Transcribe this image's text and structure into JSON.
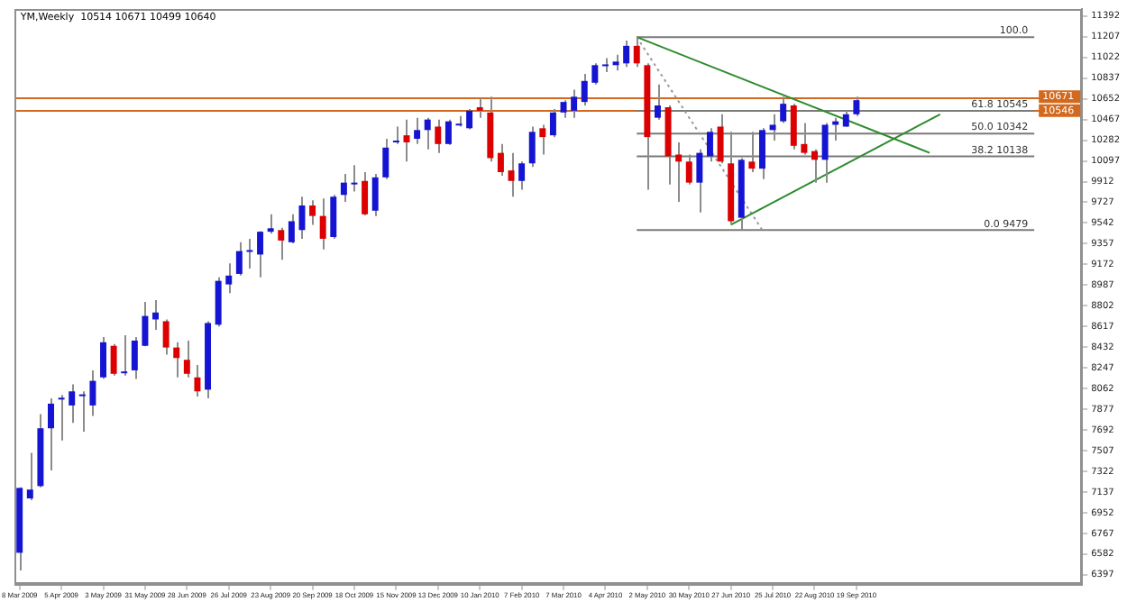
{
  "chart_data": {
    "type": "candlestick",
    "title": "YM,Weekly  10514 10671 10499 10640",
    "x": [
      "2009-03-08",
      "2009-03-15",
      "2009-03-22",
      "2009-03-29",
      "2009-04-05",
      "2009-04-12",
      "2009-04-19",
      "2009-04-26",
      "2009-05-03",
      "2009-05-10",
      "2009-05-17",
      "2009-05-24",
      "2009-05-31",
      "2009-06-07",
      "2009-06-14",
      "2009-06-21",
      "2009-06-28",
      "2009-07-05",
      "2009-07-12",
      "2009-07-19",
      "2009-07-26",
      "2009-08-02",
      "2009-08-09",
      "2009-08-16",
      "2009-08-23",
      "2009-08-30",
      "2009-09-06",
      "2009-09-13",
      "2009-09-20",
      "2009-09-27",
      "2009-10-04",
      "2009-10-11",
      "2009-10-18",
      "2009-10-25",
      "2009-11-01",
      "2009-11-08",
      "2009-11-15",
      "2009-11-22",
      "2009-11-29",
      "2009-12-06",
      "2009-12-13",
      "2009-12-20",
      "2009-12-27",
      "2010-01-03",
      "2010-01-10",
      "2010-01-17",
      "2010-01-24",
      "2010-01-31",
      "2010-02-07",
      "2010-02-14",
      "2010-02-21",
      "2010-02-28",
      "2010-03-07",
      "2010-03-14",
      "2010-03-21",
      "2010-03-28",
      "2010-04-04",
      "2010-04-11",
      "2010-04-18",
      "2010-04-25",
      "2010-05-02",
      "2010-05-09",
      "2010-05-16",
      "2010-05-23",
      "2010-05-30",
      "2010-06-06",
      "2010-06-13",
      "2010-06-20",
      "2010-06-27",
      "2010-07-04",
      "2010-07-11",
      "2010-07-18",
      "2010-07-25",
      "2010-08-01",
      "2010-08-08",
      "2010-08-15",
      "2010-08-22",
      "2010-08-29",
      "2010-09-05",
      "2010-09-12",
      "2010-09-19"
    ],
    "ohlc": [
      [
        6594,
        7180,
        6437,
        7174
      ],
      [
        7080,
        7488,
        7065,
        7159
      ],
      [
        7190,
        7833,
        7180,
        7707
      ],
      [
        7707,
        7974,
        7331,
        7927
      ],
      [
        7974,
        8005,
        7598,
        7980
      ],
      [
        7911,
        8099,
        7755,
        8037
      ],
      [
        8005,
        8037,
        7676,
        8010
      ],
      [
        7911,
        8225,
        7817,
        8131
      ],
      [
        8162,
        8523,
        8150,
        8476
      ],
      [
        8444,
        8460,
        8178,
        8194
      ],
      [
        8200,
        8539,
        8178,
        8215
      ],
      [
        8225,
        8523,
        8147,
        8491
      ],
      [
        8444,
        8836,
        8440,
        8711
      ],
      [
        8680,
        8852,
        8586,
        8742
      ],
      [
        8664,
        8680,
        8366,
        8429
      ],
      [
        8429,
        8476,
        8162,
        8335
      ],
      [
        8319,
        8491,
        8162,
        8194
      ],
      [
        8162,
        8272,
        7990,
        8037
      ],
      [
        8052,
        8664,
        7974,
        8648
      ],
      [
        8633,
        9056,
        8617,
        9025
      ],
      [
        8993,
        9181,
        8915,
        9072
      ],
      [
        9087,
        9370,
        9072,
        9291
      ],
      [
        9291,
        9401,
        9134,
        9300
      ],
      [
        9260,
        9470,
        9056,
        9464
      ],
      [
        9464,
        9620,
        9448,
        9495
      ],
      [
        9479,
        9500,
        9213,
        9385
      ],
      [
        9370,
        9620,
        9360,
        9558
      ],
      [
        9479,
        9777,
        9401,
        9699
      ],
      [
        9699,
        9746,
        9526,
        9605
      ],
      [
        9605,
        9762,
        9307,
        9401
      ],
      [
        9417,
        9793,
        9401,
        9777
      ],
      [
        9793,
        9981,
        9730,
        9903
      ],
      [
        9887,
        10059,
        9824,
        9903
      ],
      [
        9918,
        9997,
        9610,
        9620
      ],
      [
        9652,
        9981,
        9605,
        9950
      ],
      [
        9950,
        10295,
        9934,
        10216
      ],
      [
        10263,
        10404,
        10248,
        10279
      ],
      [
        10326,
        10467,
        10091,
        10263
      ],
      [
        10295,
        10483,
        10248,
        10373
      ],
      [
        10373,
        10483,
        10201,
        10467
      ],
      [
        10404,
        10467,
        10169,
        10248
      ],
      [
        10248,
        10467,
        10240,
        10451
      ],
      [
        10420,
        10499,
        10404,
        10430
      ],
      [
        10389,
        10561,
        10380,
        10546
      ],
      [
        10577,
        10655,
        10483,
        10546
      ],
      [
        10530,
        10671,
        10091,
        10122
      ],
      [
        10169,
        10248,
        9965,
        9997
      ],
      [
        10012,
        10169,
        9777,
        9918
      ],
      [
        9918,
        10091,
        9840,
        10075
      ],
      [
        10075,
        10404,
        10044,
        10357
      ],
      [
        10389,
        10420,
        10154,
        10310
      ],
      [
        10326,
        10561,
        10310,
        10530
      ],
      [
        10530,
        10640,
        10483,
        10624
      ],
      [
        10546,
        10734,
        10483,
        10671
      ],
      [
        10624,
        10875,
        10593,
        10812
      ],
      [
        10796,
        10969,
        10781,
        10953
      ],
      [
        10953,
        11016,
        10891,
        10960
      ],
      [
        10953,
        11047,
        10906,
        10985
      ],
      [
        10969,
        11173,
        10938,
        11126
      ],
      [
        11126,
        11204,
        10938,
        10969
      ],
      [
        10953,
        10969,
        9840,
        10310
      ],
      [
        10483,
        10781,
        10467,
        10593
      ],
      [
        10577,
        10593,
        9887,
        10138
      ],
      [
        10154,
        10263,
        9730,
        10091
      ],
      [
        10091,
        10154,
        9887,
        9903
      ],
      [
        9903,
        10201,
        9636,
        10169
      ],
      [
        10138,
        10389,
        10091,
        10357
      ],
      [
        10404,
        10514,
        10075,
        10091
      ],
      [
        10075,
        10357,
        9526,
        9558
      ],
      [
        9589,
        10122,
        9479,
        10107
      ],
      [
        10091,
        10357,
        9997,
        10028
      ],
      [
        10028,
        10389,
        9934,
        10373
      ],
      [
        10373,
        10514,
        10279,
        10420
      ],
      [
        10451,
        10671,
        10436,
        10608
      ],
      [
        10593,
        10608,
        10201,
        10232
      ],
      [
        10248,
        10436,
        10154,
        10169
      ],
      [
        10185,
        10201,
        9903,
        10107
      ],
      [
        10107,
        10436,
        9903,
        10420
      ],
      [
        10420,
        10483,
        10279,
        10451
      ],
      [
        10404,
        10546,
        10400,
        10514
      ],
      [
        10514,
        10671,
        10499,
        10640
      ]
    ],
    "colors": [
      "#1414d2",
      "#1414d2",
      "#1414d2",
      "#1414d2",
      "#1414d2",
      "#1414d2",
      "#1414d2",
      "#1414d2",
      "#1414d2",
      "#dc0000",
      "#1414d2",
      "#1414d2",
      "#1414d2",
      "#1414d2",
      "#dc0000",
      "#dc0000",
      "#dc0000",
      "#dc0000",
      "#1414d2",
      "#1414d2",
      "#1414d2",
      "#1414d2",
      "#1414d2",
      "#1414d2",
      "#1414d2",
      "#dc0000",
      "#1414d2",
      "#1414d2",
      "#dc0000",
      "#dc0000",
      "#1414d2",
      "#1414d2",
      "#1414d2",
      "#dc0000",
      "#1414d2",
      "#1414d2",
      "#1414d2",
      "#dc0000",
      "#1414d2",
      "#1414d2",
      "#dc0000",
      "#1414d2",
      "#1414d2",
      "#1414d2",
      "#dc0000",
      "#dc0000",
      "#dc0000",
      "#dc0000",
      "#1414d2",
      "#1414d2",
      "#dc0000",
      "#1414d2",
      "#1414d2",
      "#1414d2",
      "#1414d2",
      "#1414d2",
      "#1414d2",
      "#1414d2",
      "#1414d2",
      "#dc0000",
      "#dc0000",
      "#1414d2",
      "#dc0000",
      "#dc0000",
      "#dc0000",
      "#1414d2",
      "#1414d2",
      "#dc0000",
      "#dc0000",
      "#1414d2",
      "#dc0000",
      "#1414d2",
      "#1414d2",
      "#1414d2",
      "#dc0000",
      "#dc0000",
      "#dc0000",
      "#1414d2",
      "#1414d2",
      "#1414d2",
      "#1414d2"
    ],
    "series": [
      {
        "type": "line",
        "color": "#2e8b2e",
        "x": [
          "2010-04-25",
          "2010-11-07"
        ],
        "values": [
          11204,
          10169
        ]
      },
      {
        "type": "line",
        "color": "#2e8b2e",
        "x": [
          "2010-06-27",
          "2010-11-14"
        ],
        "values": [
          9526,
          10514
        ]
      },
      {
        "type": "line",
        "color": "#9a9a9a",
        "line_style": "dotted",
        "x": [
          "2010-04-25",
          "2010-07-18"
        ],
        "values": [
          11204,
          9479
        ]
      },
      {
        "type": "line",
        "color": "#7a7a7a",
        "x": [
          "2010-04-25",
          "2011-01-16"
        ],
        "values": [
          11204,
          11204
        ]
      },
      {
        "type": "line",
        "color": "#7a7a7a",
        "x": [
          "2010-04-25",
          "2011-01-16"
        ],
        "values": [
          10545,
          10545
        ]
      },
      {
        "type": "line",
        "color": "#7a7a7a",
        "x": [
          "2010-04-25",
          "2011-01-16"
        ],
        "values": [
          10342,
          10342
        ]
      },
      {
        "type": "line",
        "color": "#7a7a7a",
        "x": [
          "2010-04-25",
          "2011-01-16"
        ],
        "values": [
          10138,
          10138
        ]
      },
      {
        "type": "line",
        "color": "#7a7a7a",
        "x": [
          "2010-04-25",
          "2011-01-16"
        ],
        "values": [
          9479,
          9479
        ]
      }
    ],
    "ref_lines": [
      {
        "axis": "y",
        "value": 10671,
        "label": "10671",
        "color": "#d2691e"
      },
      {
        "axis": "y",
        "value": 10546,
        "label": "10546",
        "color": "#d2691e"
      }
    ],
    "annotations": [
      {
        "text": "100.0",
        "y": 11204
      },
      {
        "text": "61.8 10545",
        "y": 10545
      },
      {
        "text": "50.0 10342",
        "y": 10342
      },
      {
        "text": "38.2 10138",
        "y": 10138
      },
      {
        "text": "0.0 9479",
        "y": 9479
      }
    ],
    "xlim": [
      "2009-03-05",
      "2011-02-17"
    ],
    "xticks": [
      {
        "value": "2009-03-08",
        "label": "8 Mar 2009"
      },
      {
        "value": "2009-04-05",
        "label": "5 Apr 2009"
      },
      {
        "value": "2009-05-03",
        "label": "3 May 2009"
      },
      {
        "value": "2009-05-31",
        "label": "31 May 2009"
      },
      {
        "value": "2009-06-28",
        "label": "28 Jun 2009"
      },
      {
        "value": "2009-07-26",
        "label": "26 Jul 2009"
      },
      {
        "value": "2009-08-23",
        "label": "23 Aug 2009"
      },
      {
        "value": "2009-09-20",
        "label": "20 Sep 2009"
      },
      {
        "value": "2009-10-18",
        "label": "18 Oct 2009"
      },
      {
        "value": "2009-11-15",
        "label": "15 Nov 2009"
      },
      {
        "value": "2009-12-13",
        "label": "13 Dec 2009"
      },
      {
        "value": "2010-01-10",
        "label": "10 Jan 2010"
      },
      {
        "value": "2010-02-07",
        "label": "7 Feb 2010"
      },
      {
        "value": "2010-03-07",
        "label": "7 Mar 2010"
      },
      {
        "value": "2010-04-04",
        "label": "4 Apr 2010"
      },
      {
        "value": "2010-05-02",
        "label": "2 May 2010"
      },
      {
        "value": "2010-05-30",
        "label": "30 May 2010"
      },
      {
        "value": "2010-06-27",
        "label": "27 Jun 2010"
      },
      {
        "value": "2010-07-25",
        "label": "25 Jul 2010"
      },
      {
        "value": "2010-08-22",
        "label": "22 Aug 2010"
      },
      {
        "value": "2010-09-19",
        "label": "19 Sep 2010"
      }
    ],
    "ylim": [
      6310,
      11455
    ],
    "yticks": [
      11392,
      11207,
      11022,
      10837,
      10652,
      10467,
      10282,
      10097,
      9912,
      9727,
      9542,
      9357,
      9172,
      8987,
      8802,
      8617,
      8432,
      8247,
      8062,
      7877,
      7692,
      7507,
      7322,
      7137,
      6952,
      6767,
      6582,
      6397
    ],
    "grid": false,
    "legend": false
  }
}
